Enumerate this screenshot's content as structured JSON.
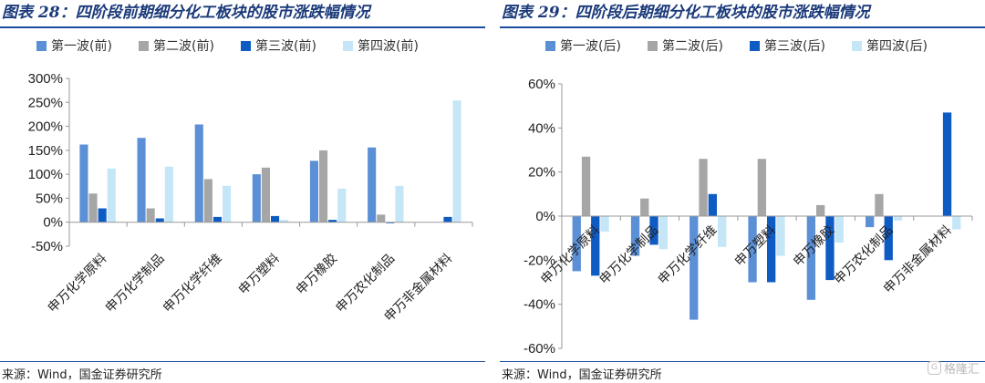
{
  "colors": [
    "#5b8fd6",
    "#a6a6a6",
    "#0f5bc4",
    "#c4e6f7"
  ],
  "source": "来源：Wind，国金证券研究所",
  "watermark": "格隆汇",
  "chart_data": [
    {
      "type": "bar",
      "title": "图表 28：四阶段前期细分化工板块的股市涨跌幅情况",
      "categories": [
        "申万化学原料",
        "申万化学制品",
        "申万化学纤维",
        "申万塑料",
        "申万橡胶",
        "申万农化制品",
        "申万非金属材料"
      ],
      "series": [
        {
          "name": "第一波(前)",
          "values": [
            1.62,
            1.76,
            2.04,
            1.0,
            1.28,
            1.56,
            0.0
          ]
        },
        {
          "name": "第二波(前)",
          "values": [
            0.6,
            0.29,
            0.9,
            1.14,
            1.5,
            0.16,
            0.0
          ]
        },
        {
          "name": "第三波(前)",
          "values": [
            0.29,
            0.08,
            0.11,
            0.13,
            0.05,
            -0.02,
            0.11
          ]
        },
        {
          "name": "第四波(前)",
          "values": [
            1.12,
            1.16,
            0.76,
            0.05,
            0.7,
            0.76,
            2.54
          ]
        }
      ],
      "ylim": [
        -0.5,
        3.0
      ],
      "yticks": [
        -0.5,
        0,
        0.5,
        1.0,
        1.5,
        2.0,
        2.5,
        3.0
      ],
      "ytick_labels": [
        "-50%",
        "0%",
        "50%",
        "100%",
        "150%",
        "200%",
        "250%",
        "300%"
      ],
      "legend": "top",
      "grid": false
    },
    {
      "type": "bar",
      "title": "图表 29：四阶段后期细分化工板块的股市涨跌幅情况",
      "categories": [
        "申万化学原料",
        "申万化学制品",
        "申万化学纤维",
        "申万塑料",
        "申万橡胶",
        "申万农化制品",
        "申万非金属材料"
      ],
      "series": [
        {
          "name": "第一波(后)",
          "values": [
            -0.25,
            -0.18,
            -0.47,
            -0.3,
            -0.38,
            -0.05,
            0.0
          ]
        },
        {
          "name": "第二波(后)",
          "values": [
            0.27,
            0.08,
            0.26,
            0.26,
            0.05,
            0.1,
            0.0
          ]
        },
        {
          "name": "第三波(后)",
          "values": [
            -0.27,
            -0.13,
            0.1,
            -0.3,
            -0.29,
            -0.2,
            0.47
          ]
        },
        {
          "name": "第四波(后)",
          "values": [
            -0.07,
            -0.15,
            -0.14,
            -0.18,
            -0.12,
            -0.02,
            -0.06
          ]
        }
      ],
      "ylim": [
        -0.6,
        0.6
      ],
      "yticks": [
        -0.6,
        -0.4,
        -0.2,
        0,
        0.2,
        0.4,
        0.6
      ],
      "ytick_labels": [
        "-60%",
        "-40%",
        "-20%",
        "0%",
        "20%",
        "40%",
        "60%"
      ],
      "legend": "top",
      "grid": false
    }
  ]
}
